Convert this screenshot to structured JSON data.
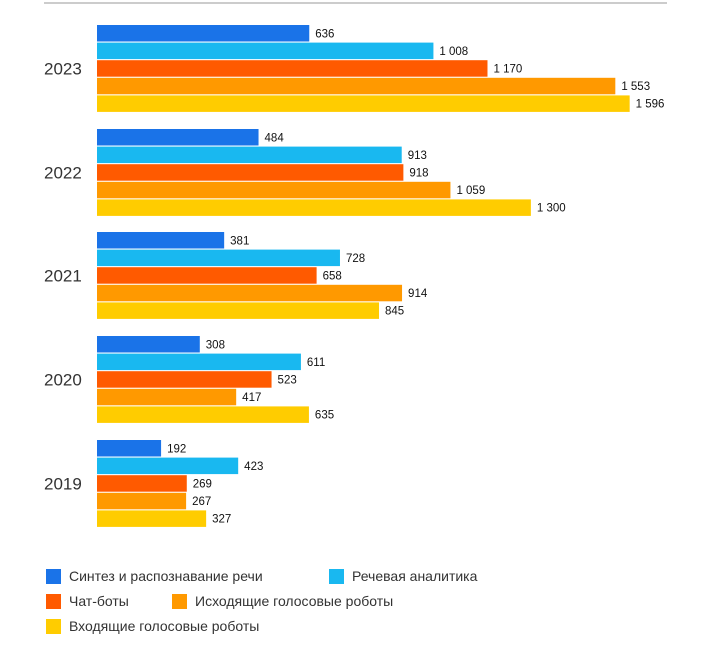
{
  "chart_data": {
    "type": "bar",
    "orientation": "horizontal",
    "categories": [
      "2023",
      "2022",
      "2021",
      "2020",
      "2019"
    ],
    "series": [
      {
        "name": "Синтез и распознавание речи",
        "color": "#1a73e8",
        "values": [
          636,
          484,
          381,
          308,
          192
        ],
        "labels": [
          "636",
          "484",
          "381",
          "308",
          "192"
        ]
      },
      {
        "name": "Речевая аналитика",
        "color": "#19b8f0",
        "values": [
          1008,
          913,
          728,
          611,
          423
        ],
        "labels": [
          "1 008",
          "913",
          "728",
          "611",
          "423"
        ]
      },
      {
        "name": "Чат-боты",
        "color": "#ff5a00",
        "values": [
          1170,
          918,
          658,
          523,
          269
        ],
        "labels": [
          "1 170",
          "918",
          "658",
          "523",
          "269"
        ]
      },
      {
        "name": "Исходящие голосовые роботы",
        "color": "#ff9900",
        "values": [
          1553,
          1059,
          914,
          417,
          267
        ],
        "labels": [
          "1 553",
          "1 059",
          "914",
          "417",
          "267"
        ]
      },
      {
        "name": "Входящие голосовые роботы",
        "color": "#ffcc00",
        "values": [
          1596,
          1300,
          845,
          635,
          327
        ],
        "labels": [
          "1 596",
          "1 300",
          "845",
          "635",
          "327"
        ]
      }
    ],
    "xlim": [
      0,
      1600
    ],
    "grid": false,
    "legend_position": "bottom"
  },
  "legend": {
    "rows": [
      [
        {
          "label": "Синтез и распознавание речи",
          "color": "#1a73e8"
        },
        {
          "label": "Речевая аналитика",
          "color": "#19b8f0"
        }
      ],
      [
        {
          "label": "Чат-боты",
          "color": "#ff5a00"
        },
        {
          "label": "Исходящие голосовые роботы",
          "color": "#ff9900"
        }
      ],
      [
        {
          "label": "Входящие голосовые роботы",
          "color": "#ffcc00"
        }
      ]
    ]
  }
}
